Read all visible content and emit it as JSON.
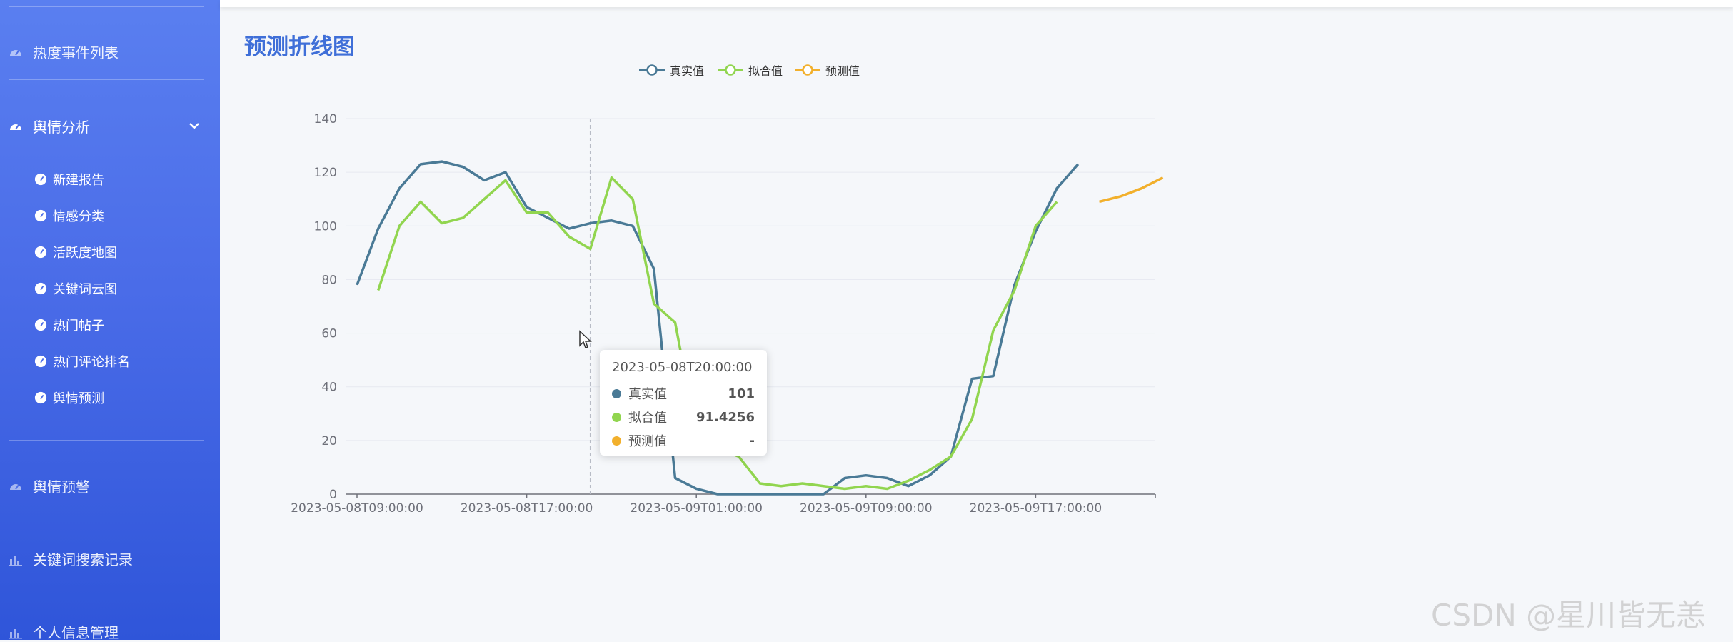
{
  "sidebar": {
    "items": [
      {
        "label": "热度事件列表",
        "icon": "speedometer-icon"
      },
      {
        "label": "舆情分析",
        "icon": "speedometer-icon",
        "expanded": true
      },
      {
        "label": "舆情预警",
        "icon": "speedometer-icon"
      },
      {
        "label": "关键词搜索记录",
        "icon": "bar-chart-icon"
      },
      {
        "label": "个人信息管理",
        "icon": "bar-chart-icon"
      }
    ],
    "sub_items": [
      {
        "label": "新建报告",
        "icon": "speedometer-icon"
      },
      {
        "label": "情感分类",
        "icon": "speedometer-icon"
      },
      {
        "label": "活跃度地图",
        "icon": "speedometer-icon"
      },
      {
        "label": "关键词云图",
        "icon": "speedometer-icon"
      },
      {
        "label": "热门帖子",
        "icon": "speedometer-icon"
      },
      {
        "label": "热门评论排名",
        "icon": "speedometer-icon"
      },
      {
        "label": "舆情预测",
        "icon": "speedometer-icon"
      }
    ]
  },
  "main": {
    "title": "预测折线图"
  },
  "chart_data": {
    "type": "line",
    "title": "预测折线图",
    "xlabel": "",
    "ylabel": "",
    "ylim": [
      0,
      140
    ],
    "y_ticks": [
      0,
      20,
      40,
      60,
      80,
      100,
      120,
      140
    ],
    "x_ticks": [
      "2023-05-08T09:00:00",
      "2023-05-08T17:00:00",
      "2023-05-09T01:00:00",
      "2023-05-09T09:00:00",
      "2023-05-09T17:00:00"
    ],
    "x_hours_start": "2023-05-08T09:00:00",
    "x_step_hours": 1,
    "grid": true,
    "legend_position": "top",
    "series": [
      {
        "name": "真实值",
        "color": "#4a7a96",
        "start_index": 0,
        "values": [
          78,
          99,
          114,
          123,
          124,
          122,
          117,
          120,
          107,
          103,
          99,
          101,
          102,
          100,
          84,
          6,
          2,
          0,
          0,
          0,
          0,
          0,
          0,
          6,
          7,
          6,
          3,
          7,
          14,
          43,
          44,
          78,
          98,
          114,
          123
        ]
      },
      {
        "name": "拟合值",
        "color": "#91d54f",
        "start_index": 1,
        "values": [
          76,
          100,
          109,
          101,
          103,
          110,
          117,
          105,
          105,
          96,
          91.4256,
          118,
          110,
          71,
          64,
          22,
          17,
          14,
          4,
          3,
          4,
          3,
          2,
          3,
          2,
          5,
          9,
          14,
          28,
          61,
          76,
          100,
          109
        ]
      },
      {
        "name": "预测值",
        "color": "#f2b02c",
        "start_index": 35,
        "values": [
          109,
          111,
          114,
          118
        ]
      }
    ],
    "crosshair_x": "2023-05-08T20:00:00"
  },
  "tooltip": {
    "title": "2023-05-08T20:00:00",
    "rows": [
      {
        "name": "真实值",
        "value": "101",
        "color": "#4a7a96"
      },
      {
        "name": "拟合值",
        "value": "91.4256",
        "color": "#91d54f"
      },
      {
        "name": "预测值",
        "value": "-",
        "color": "#f2b02c"
      }
    ]
  },
  "watermark": "CSDN @星川皆无恙"
}
